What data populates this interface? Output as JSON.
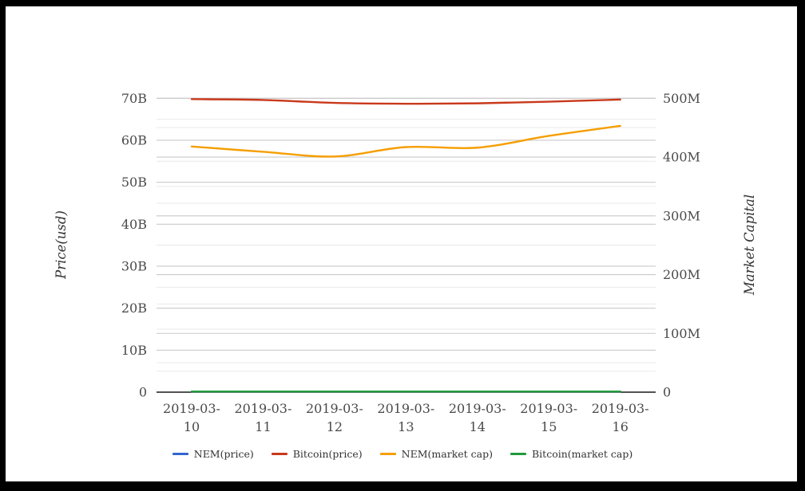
{
  "window": {
    "background": "#ffffff",
    "frame_color": "#000000"
  },
  "chart_data": {
    "type": "line",
    "title": "",
    "x_categories": [
      "2019-03-10",
      "2019-03-11",
      "2019-03-12",
      "2019-03-13",
      "2019-03-14",
      "2019-03-15",
      "2019-03-16"
    ],
    "x_tick_lines": [
      [
        "2019-03-",
        "10"
      ],
      [
        "2019-03-",
        "11"
      ],
      [
        "2019-03-",
        "12"
      ],
      [
        "2019-03-",
        "13"
      ],
      [
        "2019-03-",
        "14"
      ],
      [
        "2019-03-",
        "15"
      ],
      [
        "2019-03-",
        "16"
      ]
    ],
    "left_axis": {
      "title": "Price(usd)",
      "unit": "billions USD",
      "tick_labels": [
        "0",
        "10B",
        "20B",
        "30B",
        "40B",
        "50B",
        "60B",
        "70B"
      ],
      "tick_values": [
        0,
        10,
        20,
        30,
        40,
        50,
        60,
        70
      ],
      "minor_tick_values": [
        5,
        15,
        25,
        35,
        45,
        55,
        65
      ],
      "min": 0,
      "max": 70
    },
    "right_axis": {
      "title": "Market Capital",
      "unit": "millions USD",
      "tick_labels": [
        "0",
        "100M",
        "200M",
        "300M",
        "400M",
        "500M"
      ],
      "tick_values": [
        0,
        100,
        200,
        300,
        400,
        500
      ],
      "minor_tick_values": [
        50,
        150,
        250,
        350,
        450
      ],
      "min": 0,
      "max": 500
    },
    "series": [
      {
        "name": "NEM(price)",
        "axis": "left",
        "color": "#3366cc",
        "values": [
          0,
          0,
          0,
          0,
          0,
          0,
          0
        ]
      },
      {
        "name": "Bitcoin(price)",
        "axis": "left",
        "color": "#c9391b",
        "values": [
          69.8,
          69.6,
          68.9,
          68.7,
          68.8,
          69.2,
          69.7
        ]
      },
      {
        "name": "NEM(market cap)",
        "axis": "right",
        "color": "#f59e00",
        "values": [
          418,
          409,
          401,
          417,
          416,
          436,
          453
        ]
      },
      {
        "name": "Bitcoin(market cap)",
        "axis": "right",
        "color": "#229a3c",
        "values": [
          0,
          0,
          0,
          0,
          0,
          0,
          0
        ]
      }
    ],
    "legend": {
      "position": "bottom",
      "items": [
        "NEM(price)",
        "Bitcoin(price)",
        "NEM(market cap)",
        "Bitcoin(market cap)"
      ]
    },
    "grid": {
      "show_major": true,
      "show_minor": true,
      "major_color": "#c9c9c9",
      "minor_color": "#e9e9e9",
      "axis_line_color": "#1a1a1a"
    },
    "text_color": "#4a4a4a",
    "axis_title_color": "#333333",
    "smoothing": "cubic"
  }
}
